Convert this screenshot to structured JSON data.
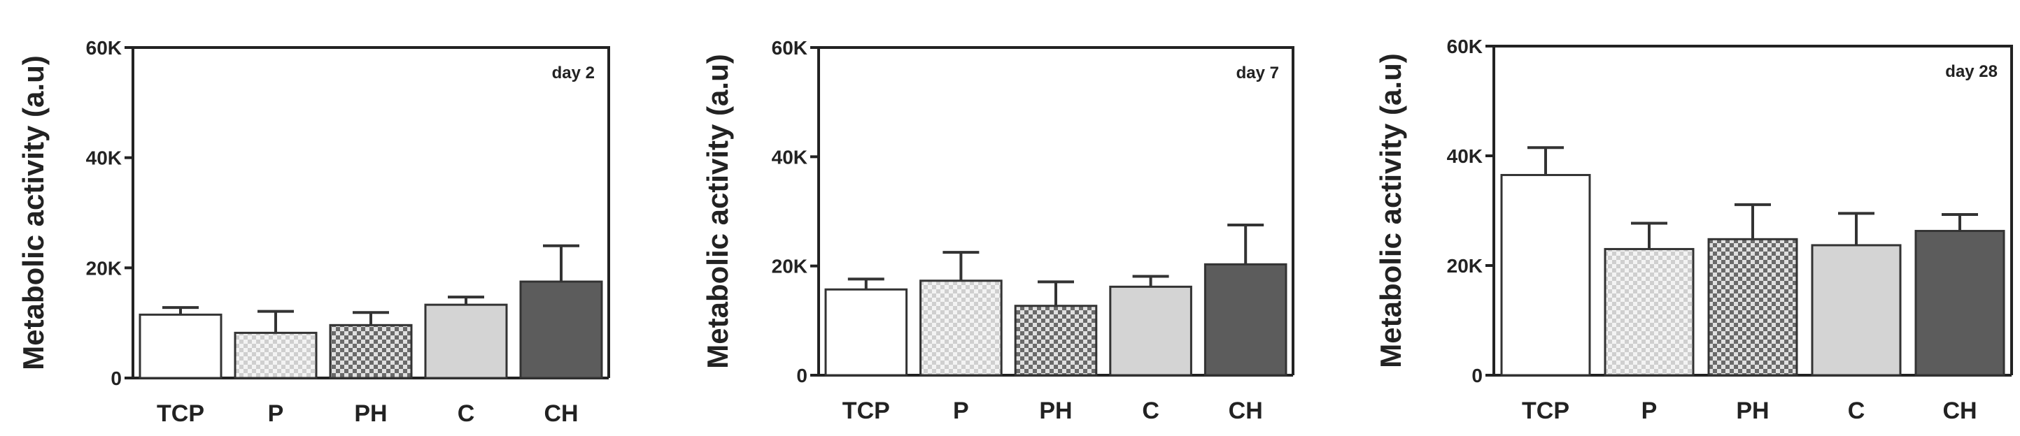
{
  "chart_data": [
    {
      "type": "bar",
      "title": "day 2",
      "ylabel": "Metabolic activity (a.u)",
      "categories": [
        "TCP",
        "P",
        "PH",
        "C",
        "CH"
      ],
      "values": [
        11500,
        8200,
        9600,
        13300,
        17500
      ],
      "errors": [
        1300,
        3900,
        2300,
        1400,
        6500
      ],
      "ylim": [
        0,
        60000
      ],
      "yticks": [
        0,
        20000,
        40000,
        60000
      ],
      "ytick_labels": [
        "0",
        "20K",
        "40K",
        "60K"
      ],
      "bar_fills": [
        "white",
        "light-check",
        "dark-check",
        "lightgray",
        "darkgray"
      ]
    },
    {
      "type": "bar",
      "title": "day 7",
      "ylabel": "Metabolic activity (a.u)",
      "categories": [
        "TCP",
        "P",
        "PH",
        "C",
        "CH"
      ],
      "values": [
        15700,
        17300,
        12700,
        16200,
        20300
      ],
      "errors": [
        1900,
        5200,
        4400,
        1900,
        7200
      ],
      "ylim": [
        0,
        60000
      ],
      "yticks": [
        0,
        20000,
        40000,
        60000
      ],
      "ytick_labels": [
        "0",
        "20K",
        "40K",
        "60K"
      ],
      "bar_fills": [
        "white",
        "light-check",
        "dark-check",
        "lightgray",
        "darkgray"
      ]
    },
    {
      "type": "bar",
      "title": "day 28",
      "ylabel": "Metabolic activity (a.u)",
      "categories": [
        "TCP",
        "P",
        "PH",
        "C",
        "CH"
      ],
      "values": [
        36500,
        23000,
        24800,
        23700,
        26300
      ],
      "errors": [
        5000,
        4700,
        6300,
        5800,
        3000
      ],
      "ylim": [
        0,
        60000
      ],
      "yticks": [
        0,
        20000,
        40000,
        60000
      ],
      "ytick_labels": [
        "0",
        "20K",
        "40K",
        "60K"
      ],
      "bar_fills": [
        "white",
        "light-check",
        "dark-check",
        "lightgray",
        "darkgray"
      ]
    }
  ]
}
